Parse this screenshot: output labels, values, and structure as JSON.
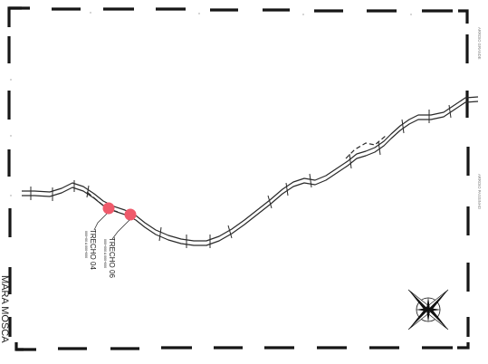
{
  "map": {
    "segments": [
      {
        "label": "TRECHO 04",
        "extent": "000+00 A 000+000"
      },
      {
        "label": "TRECHO 06",
        "extent": "000+000 A 000+000"
      }
    ],
    "edge_labels": {
      "right_top": "ARROIO GRANDE",
      "right_mid": "ARROIO PASSINHO"
    },
    "bottom_left_text": "MARA MOSCA",
    "marker_color": "#ef5a6b",
    "compass_icon": "north-arrow-compass-rose"
  }
}
